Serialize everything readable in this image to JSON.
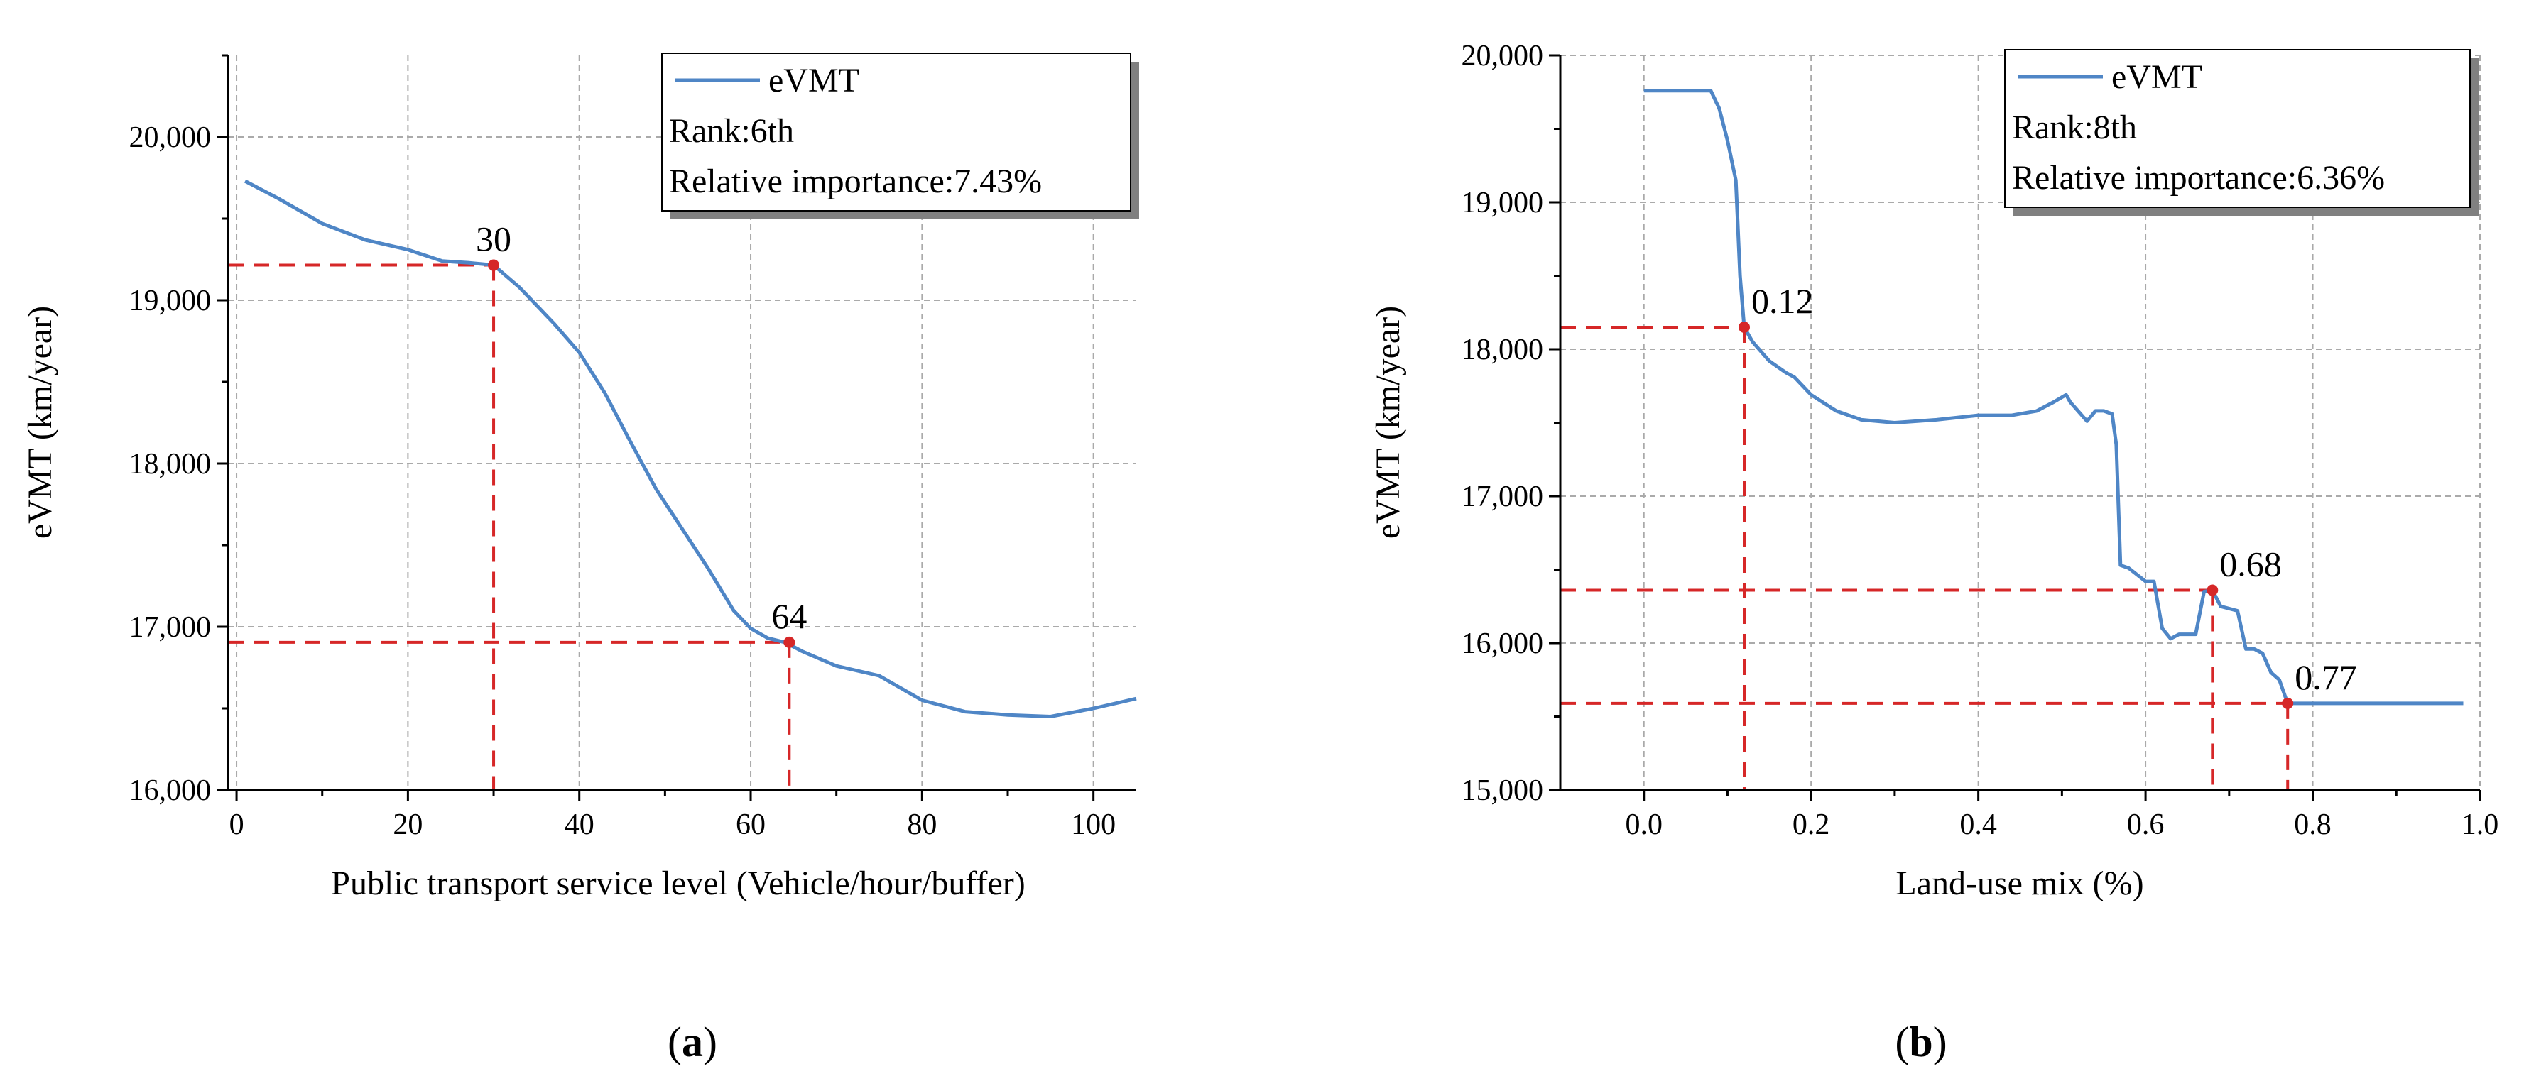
{
  "colors": {
    "line": "#4f86c6",
    "marker": "#d62728",
    "grid": "#aaaaaa",
    "axis": "#000000"
  },
  "chart_data": [
    {
      "type": "line",
      "panel": "a",
      "caption": {
        "open": "(",
        "letter": "a",
        "close": ")"
      },
      "xlabel": "Public transport service level (Vehicle/hour/buffer)",
      "ylabel": "eVMT (km/year)",
      "xlim": [
        -1,
        105
      ],
      "ylim": [
        16000,
        20500
      ],
      "xticks": [
        0,
        20,
        40,
        60,
        80,
        100
      ],
      "xtick_labels": [
        "0",
        "20",
        "40",
        "60",
        "80",
        "100"
      ],
      "yticks": [
        16000,
        17000,
        18000,
        19000,
        20000
      ],
      "ytick_labels": [
        "16,000",
        "17,000",
        "18,000",
        "19,000",
        "20,000"
      ],
      "series": [
        {
          "name": "eVMT",
          "x": [
            1,
            5,
            10,
            15,
            20,
            24,
            27,
            30,
            33,
            37,
            40,
            43,
            46,
            49,
            52,
            55,
            58,
            60,
            62,
            64,
            66,
            70,
            75,
            80,
            85,
            90,
            95,
            100,
            105
          ],
          "y": [
            19730,
            19620,
            19470,
            19370,
            19310,
            19240,
            19230,
            19215,
            19080,
            18860,
            18680,
            18430,
            18130,
            17840,
            17600,
            17360,
            17100,
            16990,
            16930,
            16905,
            16850,
            16760,
            16700,
            16550,
            16480,
            16460,
            16450,
            16500,
            16560
          ]
        }
      ],
      "legend": {
        "series_label": "eVMT",
        "rank": "Rank:6th",
        "importance": "Relative importance:7.43%"
      },
      "markers": [
        {
          "x": 30,
          "y": 19215,
          "label": "30"
        },
        {
          "x": 64.5,
          "y": 16905,
          "label": "64"
        }
      ]
    },
    {
      "type": "line",
      "panel": "b",
      "caption": {
        "open": "(",
        "letter": "b",
        "close": ")"
      },
      "xlabel": "Land-use mix (%)",
      "ylabel": "eVMT (km/year)",
      "xlim": [
        -0.1,
        1.0
      ],
      "ylim": [
        15000,
        20000
      ],
      "xticks": [
        0.0,
        0.2,
        0.4,
        0.6,
        0.8,
        1.0
      ],
      "xtick_labels": [
        "0.0",
        "0.2",
        "0.4",
        "0.6",
        "0.8",
        "1.0"
      ],
      "yticks": [
        15000,
        16000,
        17000,
        18000,
        19000,
        20000
      ],
      "ytick_labels": [
        "15,000",
        "16,000",
        "17,000",
        "18,000",
        "19,000",
        "20,000"
      ],
      "series": [
        {
          "name": "eVMT",
          "x": [
            0.0,
            0.08,
            0.09,
            0.1,
            0.11,
            0.115,
            0.12,
            0.13,
            0.15,
            0.17,
            0.18,
            0.2,
            0.23,
            0.26,
            0.3,
            0.35,
            0.4,
            0.44,
            0.47,
            0.49,
            0.505,
            0.51,
            0.53,
            0.54,
            0.55,
            0.56,
            0.565,
            0.57,
            0.58,
            0.6,
            0.61,
            0.62,
            0.63,
            0.64,
            0.66,
            0.67,
            0.68,
            0.69,
            0.71,
            0.72,
            0.73,
            0.74,
            0.75,
            0.76,
            0.77,
            0.8,
            0.9,
            0.98
          ],
          "y": [
            19760,
            19760,
            19640,
            19420,
            19150,
            18500,
            18150,
            18050,
            17920,
            17840,
            17810,
            17690,
            17580,
            17520,
            17500,
            17520,
            17550,
            17550,
            17580,
            17640,
            17690,
            17640,
            17510,
            17580,
            17580,
            17560,
            17350,
            16530,
            16510,
            16420,
            16420,
            16100,
            16030,
            16060,
            16060,
            16350,
            16360,
            16250,
            16220,
            15960,
            15960,
            15930,
            15800,
            15750,
            15590,
            15590,
            15590,
            15590
          ]
        }
      ],
      "legend": {
        "series_label": "eVMT",
        "rank": "Rank:8th",
        "importance": "Relative importance:6.36%"
      },
      "markers": [
        {
          "x": 0.12,
          "y": 18150,
          "label": "0.12"
        },
        {
          "x": 0.68,
          "y": 16360,
          "label": "0.68"
        },
        {
          "x": 0.77,
          "y": 15590,
          "label": "0.77"
        }
      ]
    }
  ]
}
